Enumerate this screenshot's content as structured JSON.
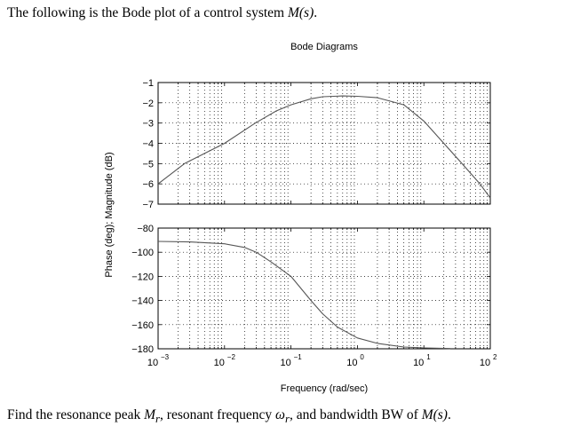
{
  "question": {
    "intro_text": "The following is the Bode plot of a control system",
    "intro_symbol": "M(s)",
    "task_pre": "Find the resonance peak",
    "sym_Mr": "M",
    "sub_r": "r",
    "task_mid1": ", resonant frequency",
    "sym_wr": "ω",
    "task_mid2": ", and bandwidth BW of",
    "task_symbol": "M(s)",
    "period": "."
  },
  "chart_data": [
    {
      "type": "line",
      "panel": "magnitude",
      "title": "Bode Diagrams",
      "ylabel": "Phase (deg); Magnitude (dB)",
      "xscale": "log",
      "xlim": [
        0.001,
        100
      ],
      "ylim": [
        -7,
        -1
      ],
      "yticks": [
        -1,
        -2,
        -3,
        -4,
        -5,
        -6,
        -7
      ],
      "grid": true,
      "x": [
        0.001,
        0.0025,
        0.01,
        0.029,
        0.06,
        0.1,
        0.2,
        0.3,
        0.6,
        1,
        2,
        5,
        10,
        20,
        40,
        70,
        100
      ],
      "y": [
        -6,
        -5,
        -4,
        -3,
        -2.4,
        -2.1,
        -1.8,
        -1.7,
        -1.66,
        -1.68,
        -1.75,
        -2.1,
        -2.9,
        -4,
        -5.1,
        -6,
        -6.7
      ]
    },
    {
      "type": "line",
      "panel": "phase",
      "xlabel": "Frequency (rad/sec)",
      "xscale": "log",
      "xlim": [
        0.001,
        100
      ],
      "ylim": [
        -180,
        -80
      ],
      "yticks": [
        -80,
        -100,
        -120,
        -140,
        -160,
        -180
      ],
      "xticks": [
        {
          "base": "10",
          "exp": "-3"
        },
        {
          "base": "10",
          "exp": "-2"
        },
        {
          "base": "10",
          "exp": "-1"
        },
        {
          "base": "10",
          "exp": "0"
        },
        {
          "base": "10",
          "exp": "1"
        },
        {
          "base": "10",
          "exp": "2"
        }
      ],
      "grid": true,
      "x": [
        0.001,
        0.003,
        0.01,
        0.02,
        0.03,
        0.05,
        0.1,
        0.2,
        0.3,
        0.5,
        1,
        2,
        5,
        10,
        25
      ],
      "y": [
        -91,
        -91.5,
        -93,
        -96,
        -100,
        -108,
        -120,
        -140,
        -151,
        -162,
        -171,
        -175.5,
        -178.5,
        -179.3,
        -179.8
      ]
    }
  ]
}
